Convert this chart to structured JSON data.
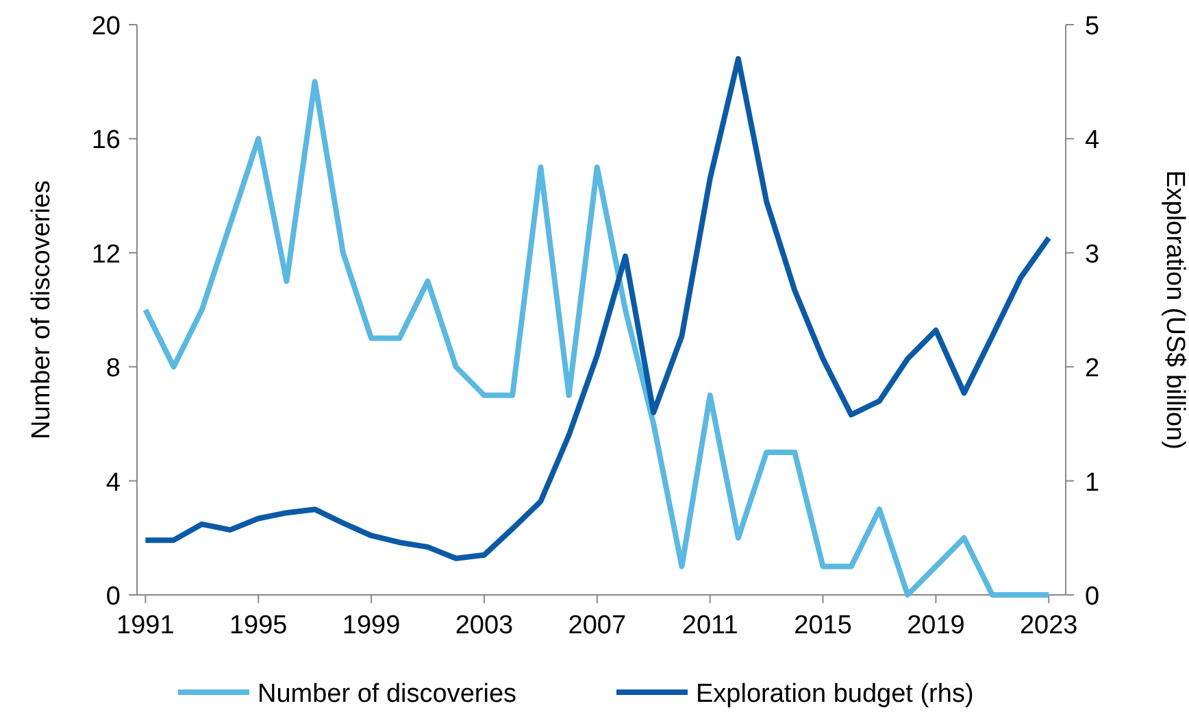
{
  "chart_data": {
    "type": "line",
    "x": [
      1991,
      1992,
      1993,
      1994,
      1995,
      1996,
      1997,
      1998,
      1999,
      2000,
      2001,
      2002,
      2003,
      2004,
      2005,
      2006,
      2007,
      2008,
      2009,
      2010,
      2011,
      2012,
      2013,
      2014,
      2015,
      2016,
      2017,
      2018,
      2019,
      2020,
      2021,
      2022,
      2023
    ],
    "series": [
      {
        "name": "Number of discoveries",
        "color": "#5bb8e0",
        "values": [
          10,
          8,
          10,
          13,
          16,
          11,
          18,
          12,
          9,
          9,
          11,
          8,
          7,
          7,
          15,
          7,
          15,
          10,
          6,
          1,
          7,
          2,
          5,
          5,
          1,
          1,
          3,
          0,
          1,
          2,
          0,
          0,
          0
        ]
      },
      {
        "name": "Exploration budget (rhs)",
        "color": "#0b5aa6",
        "axis": "y2",
        "values": [
          0.48,
          0.48,
          0.62,
          0.57,
          0.67,
          0.72,
          0.75,
          0.63,
          0.52,
          0.46,
          0.42,
          0.32,
          0.35,
          0.58,
          0.82,
          1.4,
          2.1,
          2.97,
          1.6,
          2.27,
          3.65,
          4.7,
          3.45,
          2.67,
          2.07,
          1.58,
          1.7,
          2.07,
          2.32,
          1.77,
          2.27,
          2.78,
          3.13
        ]
      }
    ],
    "ylabel": "Number of discoveries",
    "y2label": "Exploration (US$ billion)",
    "xlim": [
      1990.7,
      2023.6
    ],
    "xticks": [
      1991,
      1995,
      1999,
      2003,
      2007,
      2011,
      2015,
      2019,
      2023
    ],
    "ylim": [
      0,
      20
    ],
    "yticks": [
      0,
      4,
      8,
      12,
      16,
      20
    ],
    "y2lim": [
      0,
      5
    ],
    "y2ticks": [
      0,
      1,
      2,
      3,
      4,
      5
    ],
    "grid": false,
    "legend": "bottom",
    "marker": "none",
    "line_style": "solid"
  }
}
